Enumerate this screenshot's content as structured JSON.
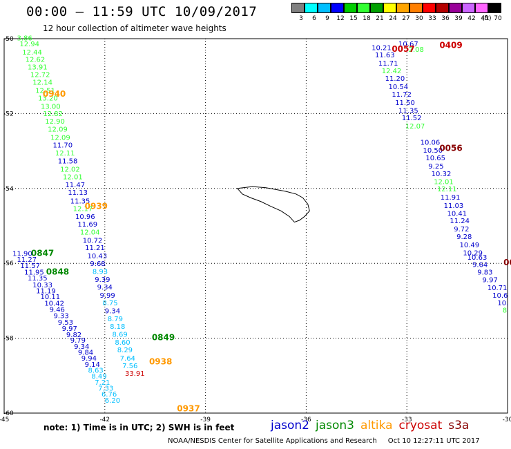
{
  "title": "00:00 – 11:59 UTC 10/09/2017",
  "subtitle": "12 hour collection of altimeter wave heights",
  "colorbar": {
    "unit": "(ft)",
    "colors": [
      "#808080",
      "#00ffff",
      "#00bfff",
      "#0000ff",
      "#00cd00",
      "#32ff32",
      "#00a000",
      "#ffff00",
      "#ffa500",
      "#ff7f00",
      "#ff0000",
      "#b40000",
      "#990099",
      "#cc66ff",
      "#ff66ff",
      "#000000"
    ],
    "ticks": [
      "3",
      "6",
      "9",
      "12",
      "15",
      "18",
      "21",
      "24",
      "27",
      "30",
      "33",
      "36",
      "39",
      "42",
      "45",
      "70"
    ]
  },
  "map": {
    "lon_range": [
      -45,
      -30
    ],
    "lat_range": [
      -60,
      -50
    ],
    "x_ticks": [
      -45,
      -42,
      -39,
      -36,
      -33,
      -30
    ],
    "y_ticks": [
      -50,
      -52,
      -54,
      -56,
      -58,
      -60
    ],
    "x_tick_labels": [
      "-45",
      "-42",
      "-39",
      "-36",
      "-33",
      "-30"
    ],
    "y_tick_labels": [
      "-50",
      "-52",
      "-54",
      "-56",
      "-58",
      "-60"
    ]
  },
  "series_colors": {
    "jason2": "#0000cc",
    "jason3": "#008800",
    "altika": "#ff9900",
    "cryosat": "#cc0000",
    "s3a": "#880000",
    "low": "#00bfff",
    "mid": "#32ff32"
  },
  "tracks": [
    {
      "name": "track-west",
      "points": [
        {
          "lon": -44.62,
          "lat": -50.05,
          "v": "3.86",
          "c": "mid"
        },
        {
          "lon": -44.54,
          "lat": -50.2,
          "v": "12.94",
          "c": "mid"
        },
        {
          "lon": -44.46,
          "lat": -50.42,
          "v": "12.44",
          "c": "mid"
        },
        {
          "lon": -44.37,
          "lat": -50.62,
          "v": "12.62",
          "c": "mid"
        },
        {
          "lon": -44.3,
          "lat": -50.82,
          "v": "13.91",
          "c": "mid"
        },
        {
          "lon": -44.22,
          "lat": -51.02,
          "v": "12.72",
          "c": "mid"
        },
        {
          "lon": -44.15,
          "lat": -51.23,
          "v": "12.14",
          "c": "mid"
        },
        {
          "lon": -44.07,
          "lat": -51.45,
          "v": "12.51",
          "c": "mid"
        },
        {
          "lon": -43.99,
          "lat": -51.65,
          "v": "13.20",
          "c": "mid"
        },
        {
          "lon": -43.91,
          "lat": -51.87,
          "v": "13.00",
          "c": "mid"
        },
        {
          "lon": -43.84,
          "lat": -52.07,
          "v": "12.82",
          "c": "mid"
        },
        {
          "lon": -43.78,
          "lat": -52.27,
          "v": "12.90",
          "c": "mid"
        },
        {
          "lon": -43.7,
          "lat": -52.48,
          "v": "12.09",
          "c": "mid"
        },
        {
          "lon": -43.62,
          "lat": -52.7,
          "v": "12.09",
          "c": "mid"
        },
        {
          "lon": -43.55,
          "lat": -52.91,
          "v": "11.70",
          "c": "jason2"
        },
        {
          "lon": -43.48,
          "lat": -53.12,
          "v": "12.11",
          "c": "mid"
        },
        {
          "lon": -43.4,
          "lat": -53.33,
          "v": "11.58",
          "c": "jason2"
        },
        {
          "lon": -43.33,
          "lat": -53.55,
          "v": "12.02",
          "c": "mid"
        },
        {
          "lon": -43.25,
          "lat": -53.75,
          "v": "12.01",
          "c": "mid"
        },
        {
          "lon": -43.18,
          "lat": -53.97,
          "v": "11.47",
          "c": "jason2"
        },
        {
          "lon": -43.1,
          "lat": -54.17,
          "v": "11.13",
          "c": "jason2"
        },
        {
          "lon": -43.03,
          "lat": -54.4,
          "v": "11.35",
          "c": "jason2"
        },
        {
          "lon": -42.95,
          "lat": -54.6,
          "v": "12.17",
          "c": "mid"
        },
        {
          "lon": -42.88,
          "lat": -54.82,
          "v": "10.96",
          "c": "jason2"
        },
        {
          "lon": -42.81,
          "lat": -55.02,
          "v": "11.69",
          "c": "jason2"
        },
        {
          "lon": -42.74,
          "lat": -55.23,
          "v": "12.04",
          "c": "mid"
        },
        {
          "lon": -42.66,
          "lat": -55.45,
          "v": "10.72",
          "c": "jason2"
        },
        {
          "lon": -42.59,
          "lat": -55.65,
          "v": "11.21",
          "c": "jason2"
        },
        {
          "lon": -42.52,
          "lat": -55.87,
          "v": "10.43",
          "c": "jason2"
        },
        {
          "lon": -42.44,
          "lat": -56.07,
          "v": "9.68",
          "c": "jason2"
        },
        {
          "lon": -42.37,
          "lat": -56.28,
          "v": "8.93",
          "c": "low"
        },
        {
          "lon": -42.3,
          "lat": -56.49,
          "v": "9.39",
          "c": "jason2"
        },
        {
          "lon": -42.23,
          "lat": -56.7,
          "v": "9.34",
          "c": "jason2"
        },
        {
          "lon": -42.15,
          "lat": -56.92,
          "v": "9.99",
          "c": "jason2"
        },
        {
          "lon": -42.07,
          "lat": -57.12,
          "v": "8.75",
          "c": "low"
        },
        {
          "lon": -42.0,
          "lat": -57.33,
          "v": "9.34",
          "c": "jason2"
        },
        {
          "lon": -41.92,
          "lat": -57.55,
          "v": "8.79",
          "c": "low"
        },
        {
          "lon": -41.85,
          "lat": -57.75,
          "v": "8.18",
          "c": "low"
        },
        {
          "lon": -41.78,
          "lat": -57.96,
          "v": "8.69",
          "c": "low"
        },
        {
          "lon": -41.7,
          "lat": -58.17,
          "v": "8.60",
          "c": "low"
        },
        {
          "lon": -41.63,
          "lat": -58.38,
          "v": "8.29",
          "c": "low"
        },
        {
          "lon": -41.55,
          "lat": -58.6,
          "v": "7.64",
          "c": "low"
        },
        {
          "lon": -41.48,
          "lat": -58.8,
          "v": "7.56",
          "c": "low"
        },
        {
          "lon": -41.4,
          "lat": -59.0,
          "v": "33.91",
          "c": "cryosat"
        }
      ]
    },
    {
      "name": "track-sw",
      "points": [
        {
          "lon": -44.75,
          "lat": -55.8,
          "v": "11.90",
          "c": "jason2"
        },
        {
          "lon": -44.62,
          "lat": -55.96,
          "v": "11.27",
          "c": "jason2"
        },
        {
          "lon": -44.52,
          "lat": -56.13,
          "v": "11.57",
          "c": "jason2"
        },
        {
          "lon": -44.4,
          "lat": -56.3,
          "v": "11.95",
          "c": "jason2"
        },
        {
          "lon": -44.3,
          "lat": -56.46,
          "v": "11.35",
          "c": "jason2"
        },
        {
          "lon": -44.15,
          "lat": -56.64,
          "v": "10.33",
          "c": "jason2"
        },
        {
          "lon": -44.05,
          "lat": -56.8,
          "v": "11.19",
          "c": "jason2"
        },
        {
          "lon": -43.92,
          "lat": -56.96,
          "v": "10.11",
          "c": "jason2"
        },
        {
          "lon": -43.8,
          "lat": -57.13,
          "v": "10.42",
          "c": "jason2"
        },
        {
          "lon": -43.65,
          "lat": -57.3,
          "v": "9.46",
          "c": "jason2"
        },
        {
          "lon": -43.53,
          "lat": -57.46,
          "v": "9.33",
          "c": "jason2"
        },
        {
          "lon": -43.4,
          "lat": -57.64,
          "v": "9.53",
          "c": "jason2"
        },
        {
          "lon": -43.28,
          "lat": -57.8,
          "v": "9.97",
          "c": "jason2"
        },
        {
          "lon": -43.15,
          "lat": -57.97,
          "v": "9.82",
          "c": "jason2"
        },
        {
          "lon": -43.03,
          "lat": -58.12,
          "v": "9.79",
          "c": "jason2"
        },
        {
          "lon": -42.92,
          "lat": -58.28,
          "v": "9.34",
          "c": "jason2"
        },
        {
          "lon": -42.8,
          "lat": -58.44,
          "v": "9.84",
          "c": "jason2"
        },
        {
          "lon": -42.7,
          "lat": -58.6,
          "v": "9.94",
          "c": "jason2"
        },
        {
          "lon": -42.6,
          "lat": -58.76,
          "v": "9.14",
          "c": "jason2"
        },
        {
          "lon": -42.5,
          "lat": -58.92,
          "v": "8.63",
          "c": "low"
        },
        {
          "lon": -42.4,
          "lat": -59.08,
          "v": "8.49",
          "c": "low"
        },
        {
          "lon": -42.3,
          "lat": -59.24,
          "v": "7.21",
          "c": "low"
        },
        {
          "lon": -42.2,
          "lat": -59.4,
          "v": "7.33",
          "c": "low"
        },
        {
          "lon": -42.1,
          "lat": -59.56,
          "v": "6.76",
          "c": "low"
        },
        {
          "lon": -42.0,
          "lat": -59.72,
          "v": "6.20",
          "c": "low"
        }
      ]
    },
    {
      "name": "track-east",
      "points": [
        {
          "lon": -34.05,
          "lat": -50.3,
          "v": "10.21",
          "c": "jason2"
        },
        {
          "lon": -33.95,
          "lat": -50.5,
          "v": "11.63",
          "c": "jason2"
        },
        {
          "lon": -33.85,
          "lat": -50.72,
          "v": "11.71",
          "c": "jason2"
        },
        {
          "lon": -33.75,
          "lat": -50.92,
          "v": "12.42",
          "c": "mid"
        },
        {
          "lon": -33.65,
          "lat": -51.13,
          "v": "11.20",
          "c": "jason2"
        },
        {
          "lon": -33.55,
          "lat": -51.35,
          "v": "10.54",
          "c": "jason2"
        },
        {
          "lon": -33.45,
          "lat": -51.55,
          "v": "11.72",
          "c": "jason2"
        },
        {
          "lon": -33.35,
          "lat": -51.77,
          "v": "11.50",
          "c": "jason2"
        },
        {
          "lon": -33.25,
          "lat": -51.98,
          "v": "11.35",
          "c": "jason2"
        },
        {
          "lon": -33.15,
          "lat": -52.18,
          "v": "11.52",
          "c": "jason2"
        },
        {
          "lon": -33.05,
          "lat": -52.4,
          "v": "12.07",
          "c": "mid"
        },
        {
          "lon": -32.6,
          "lat": -52.83,
          "v": "10.06",
          "c": "jason2"
        },
        {
          "lon": -32.52,
          "lat": -53.04,
          "v": "10.50",
          "c": "jason2"
        },
        {
          "lon": -32.44,
          "lat": -53.25,
          "v": "10.65",
          "c": "jason2"
        },
        {
          "lon": -32.36,
          "lat": -53.47,
          "v": "9.25",
          "c": "jason2"
        },
        {
          "lon": -32.27,
          "lat": -53.67,
          "v": "10.32",
          "c": "jason2"
        },
        {
          "lon": -32.2,
          "lat": -53.88,
          "v": "12.01",
          "c": "mid"
        },
        {
          "lon": -32.1,
          "lat": -54.08,
          "v": "12.11",
          "c": "mid"
        },
        {
          "lon": -32.0,
          "lat": -54.3,
          "v": "11.91",
          "c": "jason2"
        },
        {
          "lon": -31.9,
          "lat": -54.52,
          "v": "11.03",
          "c": "jason2"
        },
        {
          "lon": -31.8,
          "lat": -54.73,
          "v": "10.41",
          "c": "jason2"
        },
        {
          "lon": -31.72,
          "lat": -54.93,
          "v": "11.24",
          "c": "jason2"
        },
        {
          "lon": -31.6,
          "lat": -55.15,
          "v": "9.72",
          "c": "jason2"
        },
        {
          "lon": -31.52,
          "lat": -55.35,
          "v": "9.28",
          "c": "jason2"
        },
        {
          "lon": -31.43,
          "lat": -55.57,
          "v": "10.49",
          "c": "jason2"
        },
        {
          "lon": -31.33,
          "lat": -55.78,
          "v": "10.29",
          "c": "jason2"
        },
        {
          "lon": -31.2,
          "lat": -55.9,
          "v": "10.63",
          "c": "jason2"
        },
        {
          "lon": -31.05,
          "lat": -56.1,
          "v": "9.64",
          "c": "jason2"
        },
        {
          "lon": -30.9,
          "lat": -56.3,
          "v": "9.83",
          "c": "jason2"
        },
        {
          "lon": -30.75,
          "lat": -56.5,
          "v": "9.97",
          "c": "jason2"
        },
        {
          "lon": -30.6,
          "lat": -56.72,
          "v": "10.71",
          "c": "jason2"
        },
        {
          "lon": -30.45,
          "lat": -56.92,
          "v": "10.6",
          "c": "jason2"
        },
        {
          "lon": -30.3,
          "lat": -57.12,
          "v": "10.",
          "c": "jason2"
        },
        {
          "lon": -30.15,
          "lat": -57.32,
          "v": "8",
          "c": "mid"
        }
      ]
    }
  ],
  "extra_labels": [
    {
      "lon": -33.25,
      "lat": -50.2,
      "v": "10.67",
      "c": "jason2"
    },
    {
      "lon": -32.95,
      "lat": -50.35,
      "v": "2.08",
      "c": "mid"
    }
  ],
  "pass_labels": [
    {
      "lon": -43.85,
      "lat": -51.55,
      "v": "0940",
      "c": "altika"
    },
    {
      "lon": -42.6,
      "lat": -54.55,
      "v": "0939",
      "c": "altika"
    },
    {
      "lon": -44.2,
      "lat": -55.8,
      "v": "0847",
      "c": "jason3"
    },
    {
      "lon": -43.75,
      "lat": -56.3,
      "v": "0848",
      "c": "jason3"
    },
    {
      "lon": -40.6,
      "lat": -58.05,
      "v": "0849",
      "c": "jason3"
    },
    {
      "lon": -40.68,
      "lat": -58.7,
      "v": "0938",
      "c": "altika"
    },
    {
      "lon": -39.85,
      "lat": -59.95,
      "v": "0937",
      "c": "altika"
    },
    {
      "lon": -33.45,
      "lat": -50.35,
      "v": "0057",
      "c": "cryosat"
    },
    {
      "lon": -32.03,
      "lat": -50.25,
      "v": "0409",
      "c": "cryosat"
    },
    {
      "lon": -32.03,
      "lat": -53.0,
      "v": "0056",
      "c": "s3a"
    },
    {
      "lon": -30.12,
      "lat": -56.05,
      "v": "00",
      "c": "s3a"
    }
  ],
  "land_outline_lonlat": [
    [
      -38.05,
      -54.0
    ],
    [
      -37.6,
      -53.95
    ],
    [
      -37.2,
      -53.98
    ],
    [
      -36.9,
      -54.03
    ],
    [
      -36.6,
      -54.08
    ],
    [
      -36.3,
      -54.15
    ],
    [
      -36.1,
      -54.25
    ],
    [
      -35.95,
      -54.42
    ],
    [
      -35.9,
      -54.6
    ],
    [
      -36.05,
      -54.75
    ],
    [
      -36.2,
      -54.85
    ],
    [
      -36.35,
      -54.9
    ],
    [
      -36.5,
      -54.75
    ],
    [
      -36.75,
      -54.6
    ],
    [
      -37.05,
      -54.48
    ],
    [
      -37.35,
      -54.35
    ],
    [
      -37.65,
      -54.25
    ],
    [
      -37.9,
      -54.15
    ],
    [
      -38.05,
      -54.0
    ]
  ],
  "note": "note:  1) Time is in UTC;  2) SWH is in feet",
  "legend": [
    {
      "name": "jason2",
      "c": "jason2"
    },
    {
      "name": "jason3",
      "c": "jason3"
    },
    {
      "name": "altika",
      "c": "altika"
    },
    {
      "name": "cryosat",
      "c": "cryosat"
    },
    {
      "name": "s3a",
      "c": "s3a"
    }
  ],
  "footer": "NOAA/NESDIS Center for Satellite Applications and Research     Oct 10 12:27:11 UTC 2017"
}
